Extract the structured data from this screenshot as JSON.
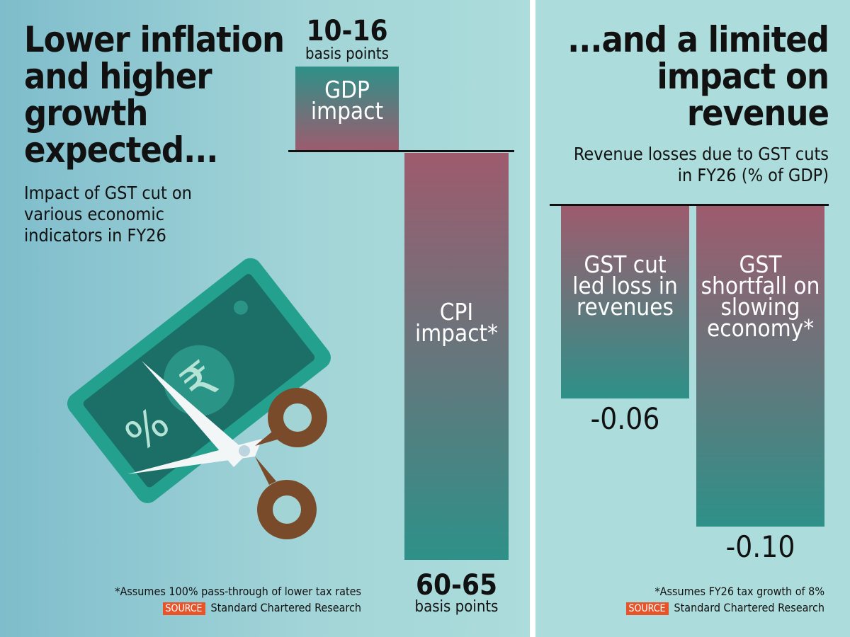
{
  "left": {
    "title": "Lower inflation and higher growth expected...",
    "subtitle": "Impact of GST cut on various economic indicators in FY26",
    "footnote": "*Assumes 100% pass-through of lower tax rates",
    "source_tag": "SOURCE",
    "source": "Standard Chartered Research"
  },
  "right": {
    "title": "...and a limited impact on revenue",
    "subtitle": "Revenue losses due to GST cuts in FY26 (% of GDP)",
    "footnote": "*Assumes FY26 tax growth of 8%",
    "source_tag": "SOURCE",
    "source": "Standard Chartered Research"
  },
  "colors": {
    "teal": "#2e9189",
    "mauve": "#9e5b6e",
    "source_tag": "#e8542a"
  },
  "chart_data": [
    {
      "type": "bar",
      "categories": [
        "GDP impact",
        "CPI impact*"
      ],
      "values_low": [
        10,
        -60
      ],
      "values_high": [
        16,
        -65
      ],
      "value_labels": [
        "10-16",
        "60-65"
      ],
      "unit": "basis points"
    },
    {
      "type": "bar",
      "categories": [
        "GST cut led loss in revenues",
        "GST shortfall on slowing economy*"
      ],
      "values": [
        -0.06,
        -0.1
      ],
      "value_labels": [
        "-0.06",
        "-0.10"
      ],
      "unit": "% of GDP"
    }
  ]
}
